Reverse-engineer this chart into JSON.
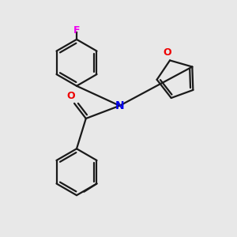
{
  "background_color": "#e8e8e8",
  "bond_color": "#1a1a1a",
  "N_color": "#0000ee",
  "O_color": "#ee0000",
  "F_color": "#ee00ee",
  "line_width": 1.6,
  "figsize": [
    3.0,
    3.0
  ],
  "dpi": 100,
  "xlim": [
    0,
    10
  ],
  "ylim": [
    0,
    10
  ]
}
